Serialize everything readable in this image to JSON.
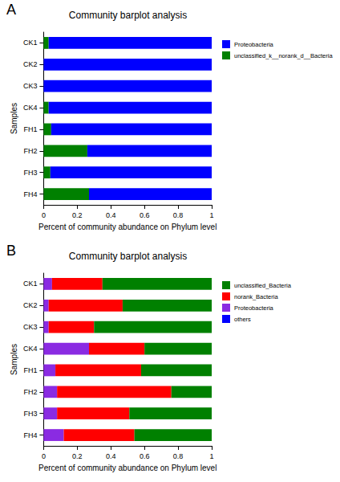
{
  "chart_data": [
    {
      "type": "bar",
      "orientation": "horizontal",
      "stacked": true,
      "annotations": [
        "A"
      ],
      "title": "Community barplot analysis",
      "x_label": "Percent of community abundance on Phylum level",
      "y_label": "Samples",
      "categories": [
        "CK1",
        "CK2",
        "CK3",
        "CK4",
        "FH1",
        "FH2",
        "FH3",
        "FH4"
      ],
      "series": [
        {
          "name": "Proteobacteria",
          "color": "#0000ff",
          "values": [
            0.97,
            1,
            1,
            0.97,
            0.955,
            0.74,
            0.96,
            0.73
          ]
        },
        {
          "name": "unclassified_k__norank_d__Bacteria",
          "color": "#008000",
          "values": [
            0.03,
            0,
            0,
            0.03,
            0.045,
            0.26,
            0.04,
            0.27
          ]
        }
      ],
      "xlim": [
        0,
        1
      ],
      "xticks": [
        0,
        0.2,
        0.4,
        0.6,
        0.8,
        1
      ],
      "legend": "top-right",
      "grid": false
    },
    {
      "type": "bar",
      "orientation": "horizontal",
      "stacked": true,
      "annotations": [
        "B"
      ],
      "title": "Community barplot analysis",
      "x_label": "Percent of community abundance on Phylum level",
      "y_label": "Samples",
      "categories": [
        "CK1",
        "CK2",
        "CK3",
        "CK4",
        "FH1",
        "FH2",
        "FH3",
        "FH4"
      ],
      "series": [
        {
          "name": "unclassified_Bacteria",
          "color": "#008000",
          "values": [
            0.65,
            0.53,
            0.7,
            0.4,
            0.42,
            0.24,
            0.49,
            0.46
          ]
        },
        {
          "name": "norank_Bacteria",
          "color": "#ff0000",
          "values": [
            0.3,
            0.44,
            0.27,
            0.33,
            0.51,
            0.68,
            0.43,
            0.42
          ]
        },
        {
          "name": "Proteobacteria",
          "color": "#8a2be2",
          "values": [
            0.05,
            0.03,
            0.03,
            0.27,
            0.07,
            0.08,
            0.08,
            0.12
          ]
        },
        {
          "name": "others",
          "color": "#0000ff",
          "values": [
            0,
            0,
            0,
            0,
            0,
            0,
            0,
            0
          ]
        }
      ],
      "xlim": [
        0,
        1
      ],
      "xticks": [
        0,
        0.2,
        0.4,
        0.6,
        0.8,
        1
      ],
      "legend": "top-right",
      "grid": false
    }
  ]
}
